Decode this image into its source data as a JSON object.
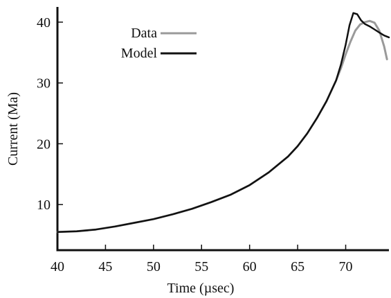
{
  "chart_data": {
    "type": "line",
    "title": "",
    "xlabel": "Time (µsec)",
    "ylabel": "Current (Ma)",
    "xlim": [
      40,
      74.5
    ],
    "ylim": [
      2.5,
      42.5
    ],
    "x_ticks": [
      40,
      45,
      50,
      55,
      60,
      65,
      70
    ],
    "y_ticks": [
      10,
      20,
      30,
      40
    ],
    "grid": false,
    "legend_position": "top-left",
    "series": [
      {
        "name": "Data",
        "color": "#9a9a9a",
        "x": [
          40,
          42,
          44,
          46,
          48,
          50,
          52,
          54,
          56,
          58,
          60,
          62,
          64,
          65,
          66,
          67,
          68,
          69,
          69.5,
          70,
          70.5,
          71,
          71.5,
          72,
          72.5,
          73,
          73.5,
          74,
          74.3
        ],
        "y": [
          5.5,
          5.6,
          5.9,
          6.4,
          7.0,
          7.6,
          8.4,
          9.3,
          10.4,
          11.6,
          13.2,
          15.3,
          17.9,
          19.6,
          21.7,
          24.2,
          27.0,
          30.4,
          32.4,
          34.7,
          36.8,
          38.6,
          39.6,
          40.0,
          40.2,
          39.9,
          38.6,
          36.0,
          33.9
        ]
      },
      {
        "name": "Model",
        "color": "#111111",
        "x": [
          40,
          42,
          44,
          46,
          48,
          50,
          52,
          54,
          56,
          58,
          60,
          62,
          64,
          65,
          66,
          67,
          68,
          69,
          69.5,
          70,
          70.4,
          70.8,
          71.2,
          71.6,
          72,
          72.5,
          73,
          73.5,
          74,
          74.5
        ],
        "y": [
          5.5,
          5.6,
          5.9,
          6.4,
          7.0,
          7.6,
          8.4,
          9.3,
          10.4,
          11.6,
          13.2,
          15.3,
          17.9,
          19.6,
          21.7,
          24.2,
          27.0,
          30.4,
          33.0,
          36.3,
          39.5,
          41.5,
          41.3,
          40.3,
          39.7,
          39.3,
          38.8,
          38.3,
          37.8,
          37.5
        ]
      }
    ]
  }
}
